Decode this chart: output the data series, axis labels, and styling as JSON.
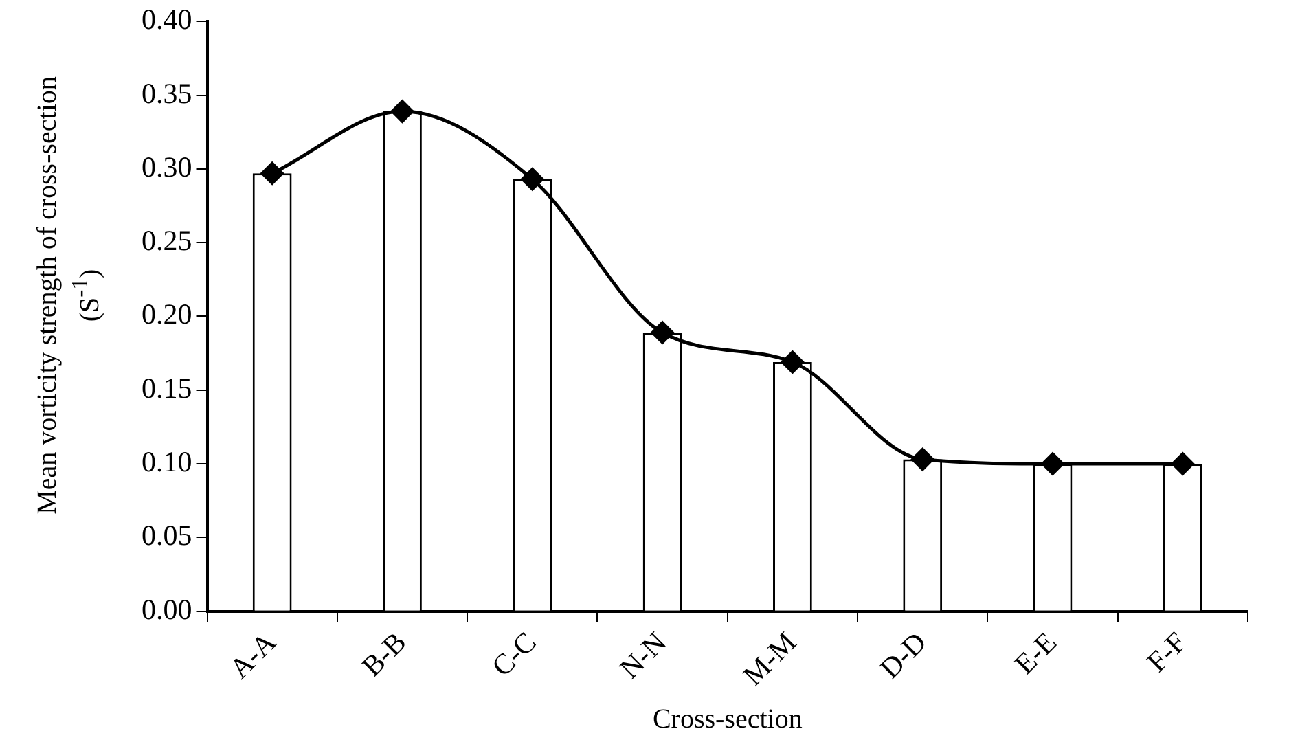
{
  "chart_data": {
    "type": "bar",
    "xlabel": "Cross-section",
    "ylabel": "Mean vorticity strength of cross-section (S$^{-1}$)",
    "categories": [
      "A-A",
      "B-B",
      "C-C",
      "N-N",
      "M-M",
      "D-D",
      "E-E",
      "F-F"
    ],
    "series": [
      {
        "color": "#ffffff",
        "values": [
          0.297,
          0.339,
          0.293,
          0.189,
          0.169,
          0.103,
          0.1,
          0.1
        ]
      },
      {
        "type": "line",
        "color": "#000000",
        "marker": "diamond",
        "values": [
          0.297,
          0.339,
          0.293,
          0.189,
          0.169,
          0.103,
          0.1,
          0.1
        ]
      }
    ],
    "ylim": [
      0,
      0.4
    ],
    "yticks": [
      {
        "value": 0,
        "label": "0.00"
      },
      {
        "value": 0.05,
        "label": "0.05"
      },
      {
        "value": 0.1,
        "label": "0.10"
      },
      {
        "value": 0.15,
        "label": "0.15"
      },
      {
        "value": 0.2,
        "label": "0.20"
      },
      {
        "value": 0.25,
        "label": "0.25"
      },
      {
        "value": 0.3,
        "label": "0.30"
      },
      {
        "value": 0.35,
        "label": "0.35"
      },
      {
        "value": 0.4,
        "label": "0.40"
      }
    ],
    "grid": false,
    "legend": false
  }
}
